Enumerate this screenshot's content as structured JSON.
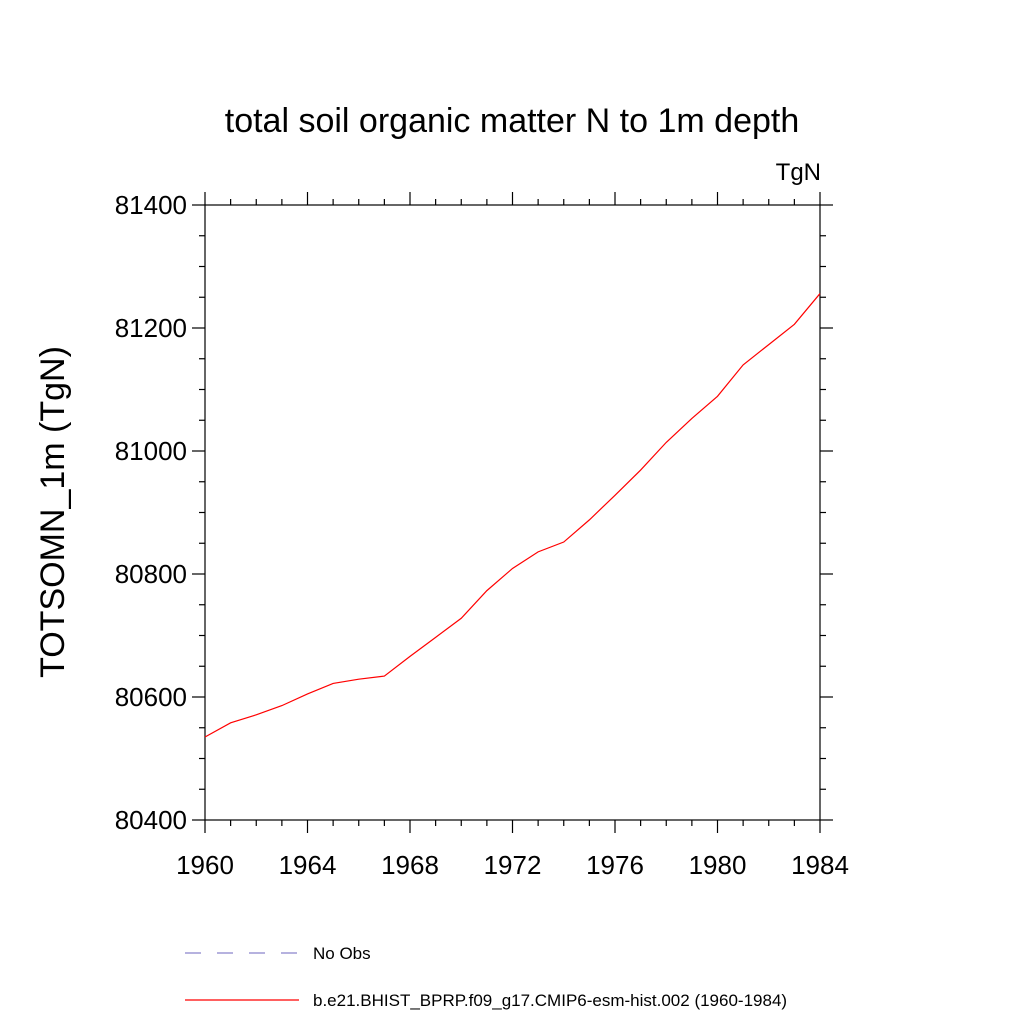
{
  "chart_data": {
    "type": "line",
    "title": "total soil organic matter N to 1m depth",
    "units": "TgN",
    "ylabel": "TOTSOMN_1m  (TgN)",
    "xlabel": "",
    "xlim": [
      1960,
      1984
    ],
    "ylim": [
      80400,
      81400
    ],
    "xticks": [
      1960,
      1964,
      1968,
      1972,
      1976,
      1980,
      1984
    ],
    "xtick_labels": [
      "1960",
      "1964",
      "1968",
      "1972",
      "1976",
      "1980",
      "1984"
    ],
    "yticks": [
      80400,
      80600,
      80800,
      81000,
      81200,
      81400
    ],
    "ytick_labels": [
      "80400",
      "80600",
      "80800",
      "81000",
      "81200",
      "81400"
    ],
    "grid": false,
    "legend_position": "bottom",
    "series": [
      {
        "name": "b.e21.BHIST_BPRP.f09_g17.CMIP6-esm-hist.002 (1960-1984)",
        "color": "#ff0000",
        "style": "solid",
        "x": [
          1960,
          1961,
          1962,
          1963,
          1964,
          1965,
          1966,
          1967,
          1968,
          1969,
          1970,
          1971,
          1972,
          1973,
          1974,
          1975,
          1976,
          1977,
          1978,
          1979,
          1980,
          1981,
          1982,
          1983,
          1984
        ],
        "y": [
          80535,
          80558,
          80571,
          80586,
          80605,
          80622,
          80629,
          80634,
          80666,
          80697,
          80728,
          80773,
          80809,
          80836,
          80852,
          80888,
          80928,
          80969,
          81014,
          81053,
          81089,
          81140,
          81173,
          81206,
          81256
        ]
      },
      {
        "name": "No Obs",
        "color": "#8a84cc",
        "style": "dashed",
        "x": [],
        "y": []
      }
    ]
  }
}
